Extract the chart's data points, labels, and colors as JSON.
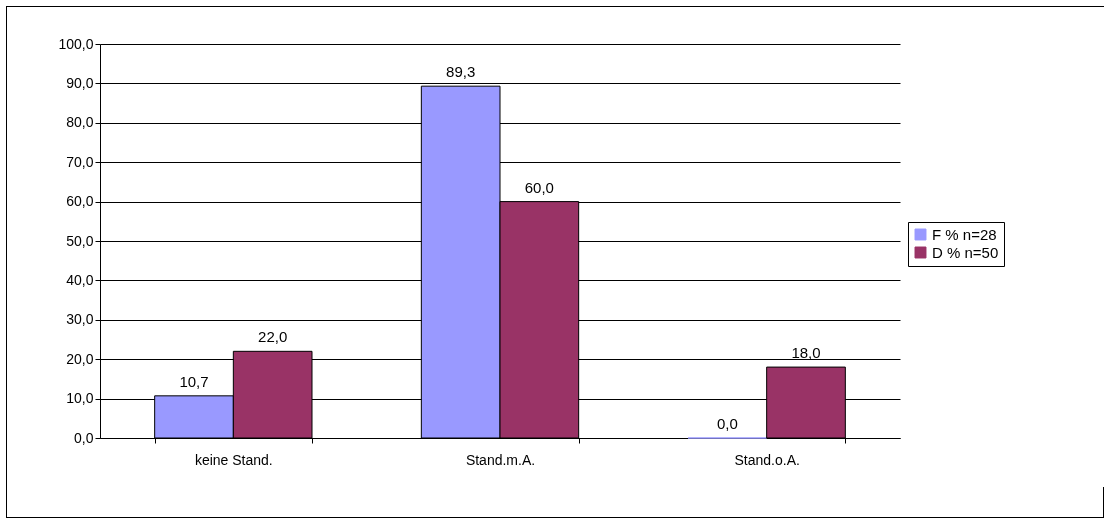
{
  "chart_data": {
    "type": "bar",
    "categories": [
      "keine Stand.",
      "Stand.m.A.",
      "Stand.o.A."
    ],
    "series": [
      {
        "name": "F % n=28",
        "color": "#9999ff",
        "values": [
          10.7,
          89.3,
          0.0
        ],
        "value_labels": [
          "10,7",
          "89,3",
          "0,0"
        ]
      },
      {
        "name": "D % n=50",
        "color": "#993366",
        "values": [
          22.0,
          60.0,
          18.0
        ],
        "value_labels": [
          "22,0",
          "60,0",
          "18,0"
        ]
      }
    ],
    "ylim": [
      0,
      100
    ],
    "yticks": [
      {
        "value": 0,
        "label": "0,0"
      },
      {
        "value": 10,
        "label": "10,0"
      },
      {
        "value": 20,
        "label": "20,0"
      },
      {
        "value": 30,
        "label": "30,0"
      },
      {
        "value": 40,
        "label": "40,0"
      },
      {
        "value": 50,
        "label": "50,0"
      },
      {
        "value": 60,
        "label": "60,0"
      },
      {
        "value": 70,
        "label": "70,0"
      },
      {
        "value": 80,
        "label": "80,0"
      },
      {
        "value": 90,
        "label": "90,0"
      },
      {
        "value": 100,
        "label": "100,0"
      }
    ],
    "grid": "y",
    "legend": "right"
  }
}
